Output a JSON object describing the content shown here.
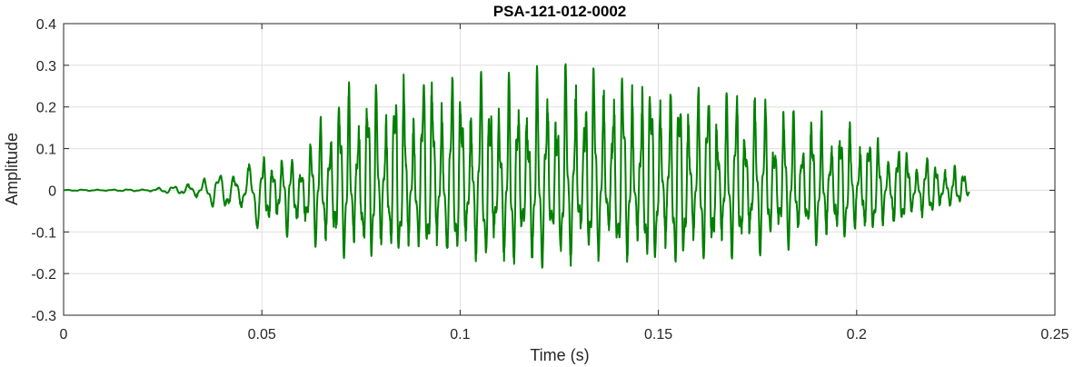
{
  "chart_data": {
    "type": "line",
    "title": "PSA-121-012-0002",
    "xlabel": "Time (s)",
    "ylabel": "Amplitude",
    "xlim": [
      0,
      0.25
    ],
    "ylim": [
      -0.3,
      0.4
    ],
    "xticks": [
      0,
      0.05,
      0.1,
      0.15,
      0.2,
      0.25
    ],
    "xtick_labels": [
      "0",
      "0.05",
      "0.1",
      "0.15",
      "0.2",
      "0.25"
    ],
    "yticks": [
      -0.3,
      -0.2,
      -0.1,
      0,
      0.1,
      0.2,
      0.3,
      0.4
    ],
    "ytick_labels": [
      "-0.3",
      "-0.2",
      "-0.1",
      "0",
      "0.1",
      "0.2",
      "0.3",
      "0.4"
    ],
    "grid": true,
    "series": [
      {
        "color": "#008000",
        "x_range": [
          0,
          0.2285
        ],
        "envelope": {
          "t": [
            0,
            0.02,
            0.03,
            0.035,
            0.04,
            0.045,
            0.05,
            0.06,
            0.068,
            0.08,
            0.09,
            0.1,
            0.11,
            0.12,
            0.13,
            0.14,
            0.15,
            0.16,
            0.17,
            0.18,
            0.19,
            0.2,
            0.21,
            0.22,
            0.2285
          ],
          "max": [
            0.002,
            0.004,
            0.02,
            0.03,
            0.045,
            0.06,
            0.09,
            0.08,
            0.25,
            0.29,
            0.32,
            0.31,
            0.29,
            0.3,
            0.33,
            0.32,
            0.3,
            0.27,
            0.26,
            0.22,
            0.2,
            0.17,
            0.12,
            0.08,
            0.05
          ],
          "min": [
            -0.002,
            -0.004,
            -0.015,
            -0.03,
            -0.055,
            -0.07,
            -0.1,
            -0.12,
            -0.17,
            -0.18,
            -0.17,
            -0.18,
            -0.19,
            -0.2,
            -0.18,
            -0.18,
            -0.21,
            -0.19,
            -0.17,
            -0.15,
            -0.14,
            -0.12,
            -0.1,
            -0.06,
            -0.02
          ]
        }
      }
    ]
  }
}
